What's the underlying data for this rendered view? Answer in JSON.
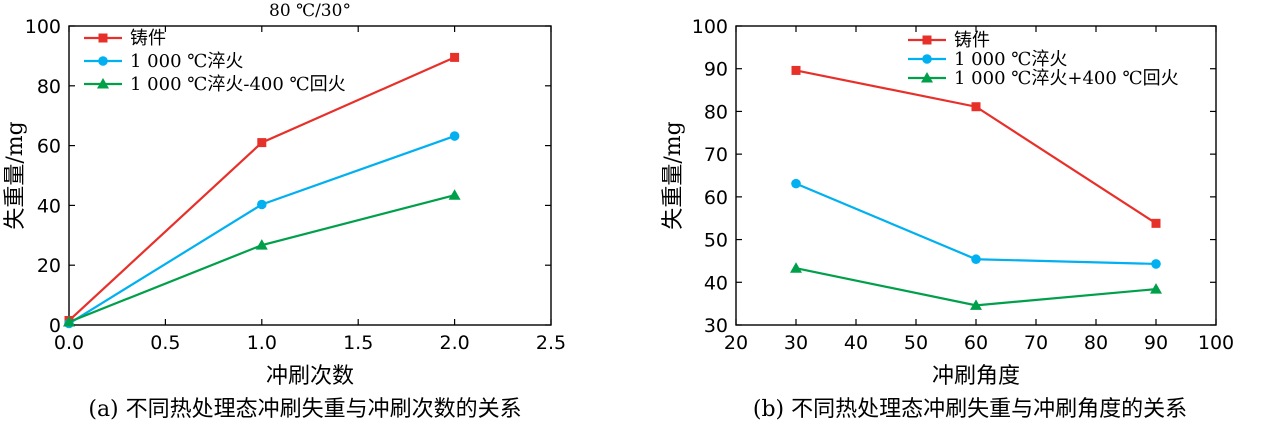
{
  "figure_title_a": "80 ℃/30°",
  "captions": [
    "(a) 不同热处理态冲刷失重与冲刷次数的关系",
    "(b) 不同热处理态冲刷失重与冲刷角度的关系"
  ],
  "chart_data": [
    {
      "type": "line",
      "xlabel": "冲刷次数",
      "ylabel": "失重量/mg",
      "xlim": [
        0,
        2.5
      ],
      "ylim": [
        0,
        100
      ],
      "xticks": [
        0,
        0.5,
        1,
        1.5,
        2,
        2.5
      ],
      "xtick_labels": [
        "0.0",
        "0.5",
        "1.0",
        "1.5",
        "2.0",
        "2.5"
      ],
      "yticks": [
        0,
        20,
        40,
        60,
        80,
        100
      ],
      "ytick_labels": [
        "0",
        "20",
        "40",
        "60",
        "80",
        "100"
      ],
      "legend": "top-left",
      "grid": false,
      "series": [
        {
          "name": "铸件",
          "color": "#e8302a",
          "marker": "square",
          "x": [
            0,
            1,
            2
          ],
          "y": [
            1.5,
            61,
            89.5
          ]
        },
        {
          "name": "1 000 ℃淬火",
          "color": "#00b0f0",
          "marker": "circle",
          "x": [
            0,
            1,
            2
          ],
          "y": [
            0.5,
            40.3,
            63.2
          ]
        },
        {
          "name": "1 000 ℃淬火-400 ℃回火",
          "color": "#00a04b",
          "marker": "triangle",
          "x": [
            0,
            1,
            2
          ],
          "y": [
            1,
            26.7,
            43.4
          ]
        }
      ]
    },
    {
      "type": "line",
      "xlabel": "冲刷角度",
      "ylabel": "失重量/mg",
      "xlim": [
        20,
        100
      ],
      "ylim": [
        30,
        100
      ],
      "xticks": [
        20,
        30,
        40,
        50,
        60,
        70,
        80,
        90,
        100
      ],
      "xtick_labels": [
        "20",
        "30",
        "40",
        "50",
        "60",
        "70",
        "80",
        "90",
        "100"
      ],
      "yticks": [
        30,
        40,
        50,
        60,
        70,
        80,
        90,
        100
      ],
      "ytick_labels": [
        "30",
        "40",
        "50",
        "60",
        "70",
        "80",
        "90",
        "100"
      ],
      "legend": "top-center",
      "grid": false,
      "series": [
        {
          "name": "铸件",
          "color": "#e8302a",
          "marker": "square",
          "x": [
            30,
            60,
            90
          ],
          "y": [
            89.6,
            81.1,
            53.8
          ]
        },
        {
          "name": "1 000 ℃淬火",
          "color": "#00b0f0",
          "marker": "circle",
          "x": [
            30,
            60,
            90
          ],
          "y": [
            63.1,
            45.4,
            44.3
          ]
        },
        {
          "name": "1 000 ℃淬火+400 ℃回火",
          "color": "#00a04b",
          "marker": "triangle",
          "x": [
            30,
            60,
            90
          ],
          "y": [
            43.3,
            34.6,
            38.4
          ]
        }
      ]
    }
  ]
}
